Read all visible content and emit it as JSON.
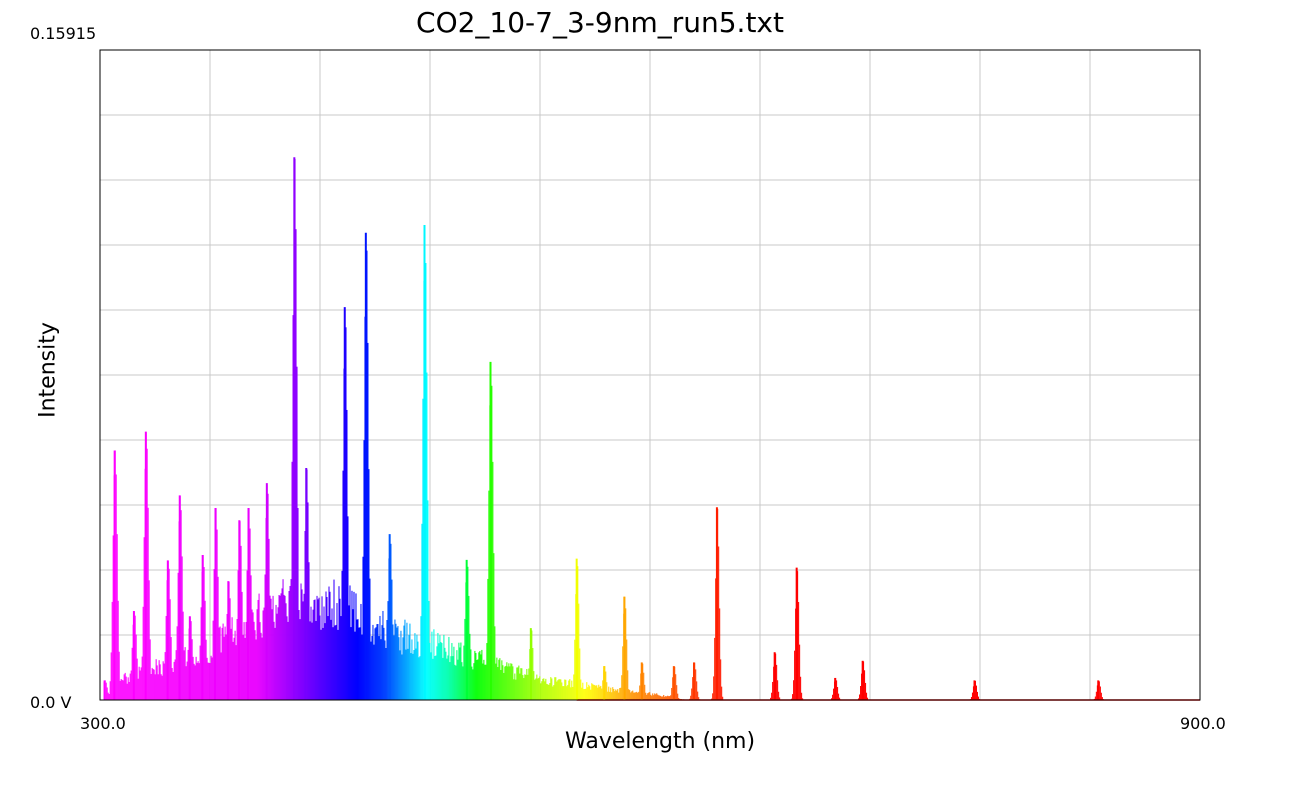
{
  "chart_data": {
    "type": "area",
    "title": "CO2_10-7_3-9nm_run5.txt",
    "xlabel": "Wavelength (nm)",
    "ylabel": "Intensity",
    "xlim": [
      300.0,
      900.0
    ],
    "ylim": [
      0.0,
      0.15915
    ],
    "x_tick_labels": {
      "min": "300.0",
      "max": "900.0"
    },
    "y_tick_labels": {
      "min": "0.0 V",
      "max": "0.15915"
    },
    "grid": true,
    "fill": "spectral colors by wavelength",
    "peaks": [
      {
        "x": 302.5,
        "y": 0.0048
      },
      {
        "x": 308.0,
        "y": 0.0611
      },
      {
        "x": 318.5,
        "y": 0.0218
      },
      {
        "x": 325.0,
        "y": 0.0657
      },
      {
        "x": 337.0,
        "y": 0.0342
      },
      {
        "x": 343.5,
        "y": 0.0501
      },
      {
        "x": 349.0,
        "y": 0.0205
      },
      {
        "x": 356.0,
        "y": 0.0355
      },
      {
        "x": 363.0,
        "y": 0.047
      },
      {
        "x": 370.0,
        "y": 0.0291
      },
      {
        "x": 376.0,
        "y": 0.044
      },
      {
        "x": 381.0,
        "y": 0.047
      },
      {
        "x": 391.0,
        "y": 0.0531
      },
      {
        "x": 406.0,
        "y": 0.1329
      },
      {
        "x": 412.5,
        "y": 0.0568
      },
      {
        "x": 433.5,
        "y": 0.0962
      },
      {
        "x": 445.0,
        "y": 0.1144
      },
      {
        "x": 458.0,
        "y": 0.0406
      },
      {
        "x": 477.0,
        "y": 0.1163
      },
      {
        "x": 500.0,
        "y": 0.0343
      },
      {
        "x": 513.0,
        "y": 0.0828
      },
      {
        "x": 535.0,
        "y": 0.0176
      },
      {
        "x": 560.0,
        "y": 0.0346
      },
      {
        "x": 575.0,
        "y": 0.0083
      },
      {
        "x": 586.0,
        "y": 0.0253
      },
      {
        "x": 595.5,
        "y": 0.0092
      },
      {
        "x": 613.0,
        "y": 0.0083
      },
      {
        "x": 624.0,
        "y": 0.0092
      },
      {
        "x": 636.5,
        "y": 0.0472
      },
      {
        "x": 668.0,
        "y": 0.0117
      },
      {
        "x": 680.0,
        "y": 0.0324
      },
      {
        "x": 701.0,
        "y": 0.0054
      },
      {
        "x": 716.0,
        "y": 0.0096
      },
      {
        "x": 777.0,
        "y": 0.0048
      },
      {
        "x": 844.5,
        "y": 0.0048
      }
    ]
  }
}
